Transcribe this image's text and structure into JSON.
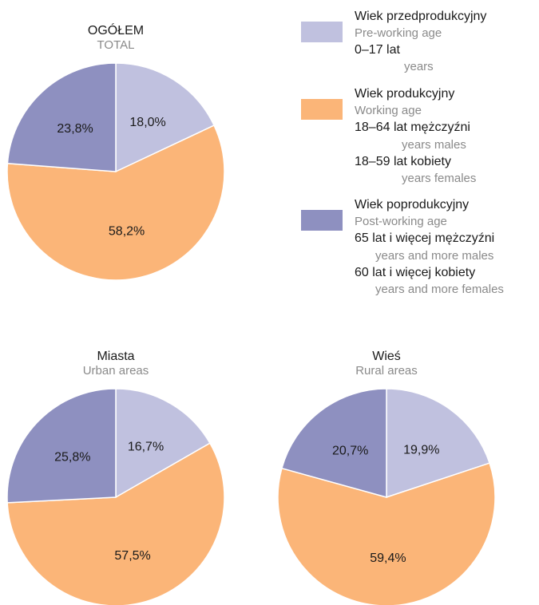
{
  "colors": {
    "pre_working": "#c0c1df",
    "working": "#fbb578",
    "post_working": "#8e90c0"
  },
  "legend": {
    "pre": {
      "title_pl": "Wiek przedprodukcyjny",
      "title_en": "Pre-working age",
      "line1_pl": "0–17 lat",
      "line1_en": "years"
    },
    "working": {
      "title_pl": "Wiek produkcyjny",
      "title_en": "Working age",
      "line1_pl": "18–64 lat mężczyźni",
      "line1_en": "years males",
      "line2_pl": "18–59 lat kobiety",
      "line2_en": "years females"
    },
    "post": {
      "title_pl": "Wiek poprodukcyjny",
      "title_en": "Post-working age",
      "line1_pl": "65 lat i więcej mężczyźni",
      "line1_en": "years and more males",
      "line2_pl": "60 lat i więcej kobiety",
      "line2_en": "years and more females"
    }
  },
  "chart_data": [
    {
      "type": "pie",
      "title": "OGÓŁEM",
      "subtitle": "TOTAL",
      "categories": [
        "Wiek przedprodukcyjny",
        "Wiek produkcyjny",
        "Wiek poprodukcyjny"
      ],
      "values": [
        18.0,
        58.2,
        23.8
      ],
      "labels": [
        "18,0%",
        "58,2%",
        "23,8%"
      ]
    },
    {
      "type": "pie",
      "title": "Miasta",
      "subtitle": "Urban areas",
      "categories": [
        "Wiek przedprodukcyjny",
        "Wiek produkcyjny",
        "Wiek poprodukcyjny"
      ],
      "values": [
        16.7,
        57.5,
        25.8
      ],
      "labels": [
        "16,7%",
        "57,5%",
        "25,8%"
      ]
    },
    {
      "type": "pie",
      "title": "Wieś",
      "subtitle": "Rural areas",
      "categories": [
        "Wiek przedprodukcyjny",
        "Wiek produkcyjny",
        "Wiek poprodukcyjny"
      ],
      "values": [
        19.9,
        59.4,
        20.7
      ],
      "labels": [
        "19,9%",
        "59,4%",
        "20,7%"
      ]
    }
  ]
}
